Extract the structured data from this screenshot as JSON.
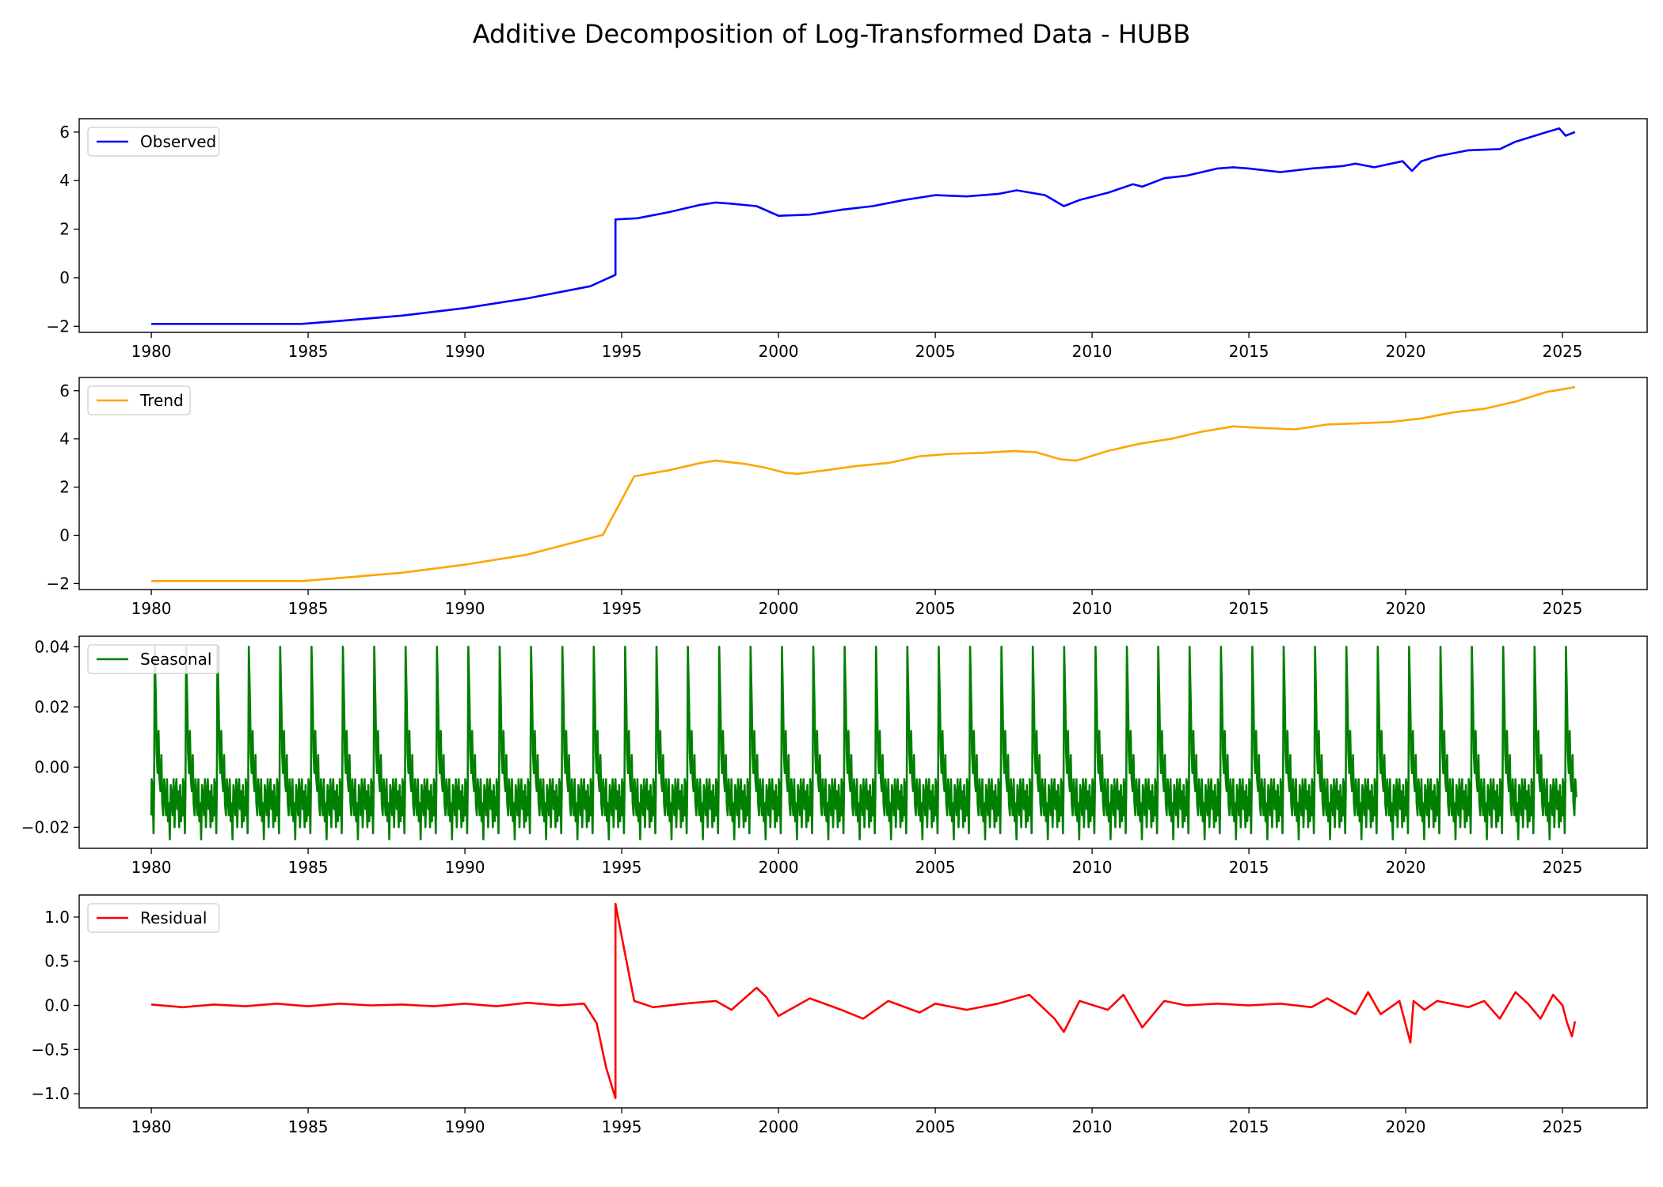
{
  "figure": {
    "title": "Additive Decomposition of Log-Transformed Data - HUBB"
  },
  "chart_data": [
    {
      "type": "line",
      "id": "observed",
      "legend": "Observed",
      "color": "#0000ff",
      "xlim": [
        1977.7,
        2027.7
      ],
      "ylim": [
        -2.25,
        6.55
      ],
      "xticks": [
        1980,
        1985,
        1990,
        1995,
        2000,
        2005,
        2010,
        2015,
        2020,
        2025
      ],
      "yticks": [
        -2,
        0,
        2,
        4,
        6
      ],
      "ytick_labels": [
        "−2",
        "0",
        "2",
        "4",
        "6"
      ],
      "legend_position": "upper-left",
      "x": [
        1980,
        1984.8,
        1986,
        1988,
        1990,
        1992,
        1994,
        1994.8,
        1994.8,
        1995.5,
        1996.5,
        1997.5,
        1998,
        1998.5,
        1999.3,
        2000,
        2001,
        2002,
        2003,
        2004,
        2005,
        2006,
        2007,
        2007.6,
        2008.5,
        2009.1,
        2009.6,
        2010.5,
        2011.3,
        2011.6,
        2012.3,
        2013,
        2014,
        2014.5,
        2015,
        2016,
        2017,
        2018,
        2018.4,
        2019,
        2019.9,
        2020.2,
        2020.5,
        2021,
        2022,
        2023,
        2023.5,
        2024,
        2024.5,
        2024.9,
        2025.1,
        2025.4
      ],
      "y": [
        -1.9,
        -1.9,
        -1.78,
        -1.56,
        -1.25,
        -0.85,
        -0.35,
        0.12,
        2.4,
        2.45,
        2.7,
        3.0,
        3.1,
        3.05,
        2.95,
        2.55,
        2.6,
        2.8,
        2.95,
        3.2,
        3.4,
        3.35,
        3.45,
        3.6,
        3.4,
        2.95,
        3.2,
        3.5,
        3.85,
        3.75,
        4.1,
        4.2,
        4.5,
        4.55,
        4.5,
        4.35,
        4.5,
        4.6,
        4.7,
        4.55,
        4.8,
        4.4,
        4.8,
        5.0,
        5.25,
        5.3,
        5.6,
        5.8,
        6.0,
        6.15,
        5.85,
        6.0
      ]
    },
    {
      "type": "line",
      "id": "trend",
      "legend": "Trend",
      "color": "#ffa500",
      "xlim": [
        1977.7,
        2027.7
      ],
      "ylim": [
        -2.25,
        6.55
      ],
      "xticks": [
        1980,
        1985,
        1990,
        1995,
        2000,
        2005,
        2010,
        2015,
        2020,
        2025
      ],
      "yticks": [
        -2,
        0,
        2,
        4,
        6
      ],
      "ytick_labels": [
        "−2",
        "0",
        "2",
        "4",
        "6"
      ],
      "legend_position": "upper-left",
      "x": [
        1980,
        1984.8,
        1986,
        1988,
        1990,
        1992,
        1994.4,
        1995.4,
        1996.5,
        1997.5,
        1998,
        1999,
        1999.6,
        2000.2,
        2000.6,
        2001.5,
        2002.5,
        2003.5,
        2004.5,
        2005.5,
        2006.5,
        2007.5,
        2008.2,
        2009,
        2009.5,
        2010.5,
        2011.5,
        2012.5,
        2013.5,
        2014.5,
        2015.5,
        2016.5,
        2017.5,
        2018.5,
        2019.5,
        2020.5,
        2021.5,
        2022.5,
        2023.5,
        2024.5,
        2025.4
      ],
      "y": [
        -1.9,
        -1.9,
        -1.77,
        -1.55,
        -1.22,
        -0.8,
        0.02,
        2.45,
        2.7,
        3.0,
        3.1,
        2.95,
        2.8,
        2.6,
        2.55,
        2.7,
        2.88,
        3.0,
        3.28,
        3.38,
        3.42,
        3.5,
        3.45,
        3.15,
        3.1,
        3.5,
        3.8,
        4.0,
        4.3,
        4.52,
        4.45,
        4.4,
        4.6,
        4.65,
        4.7,
        4.85,
        5.1,
        5.25,
        5.55,
        5.95,
        6.15
      ]
    },
    {
      "type": "line",
      "id": "seasonal",
      "legend": "Seasonal",
      "color": "#008000",
      "xlim": [
        1977.7,
        2027.7
      ],
      "ylim": [
        -0.027,
        0.0435
      ],
      "xticks": [
        1980,
        1985,
        1990,
        1995,
        2000,
        2005,
        2010,
        2015,
        2020,
        2025
      ],
      "yticks": [
        -0.02,
        0.0,
        0.02,
        0.04
      ],
      "ytick_labels": [
        "−0.02",
        "0.00",
        "0.02",
        "0.04"
      ],
      "legend_position": "upper-left",
      "period_years": 1,
      "cycle_phase": [
        0.0,
        0.01,
        0.02,
        0.03,
        0.04,
        0.05,
        0.07,
        0.09,
        0.11,
        0.13,
        0.15,
        0.17,
        0.2,
        0.23,
        0.26,
        0.29,
        0.32,
        0.35,
        0.38,
        0.41,
        0.44,
        0.47,
        0.5,
        0.53,
        0.56,
        0.59,
        0.62,
        0.65,
        0.68,
        0.71,
        0.74,
        0.77,
        0.8,
        0.83,
        0.86,
        0.89,
        0.92,
        0.95,
        0.97,
        0.99
      ],
      "cycle_values": [
        -0.016,
        -0.004,
        -0.014,
        -0.005,
        -0.016,
        -0.012,
        -0.022,
        -0.008,
        0.04,
        0.03,
        0.02,
        0.005,
        -0.002,
        0.012,
        -0.004,
        -0.008,
        0.004,
        -0.012,
        -0.016,
        -0.004,
        -0.01,
        -0.016,
        -0.004,
        -0.018,
        -0.012,
        -0.024,
        -0.006,
        -0.01,
        -0.016,
        -0.004,
        -0.02,
        -0.008,
        -0.004,
        -0.014,
        -0.008,
        -0.02,
        -0.006,
        -0.018,
        -0.01,
        -0.016
      ]
    },
    {
      "type": "line",
      "id": "residual",
      "legend": "Residual",
      "color": "#ff0000",
      "xlim": [
        1977.7,
        2027.7
      ],
      "ylim": [
        -1.16,
        1.25
      ],
      "xticks": [
        1980,
        1985,
        1990,
        1995,
        2000,
        2005,
        2010,
        2015,
        2020,
        2025
      ],
      "yticks": [
        -1.0,
        -0.5,
        0.0,
        0.5,
        1.0
      ],
      "ytick_labels": [
        "−1.0",
        "−0.5",
        "0.0",
        "0.5",
        "1.0"
      ],
      "legend_position": "upper-left",
      "x": [
        1980,
        1981,
        1982,
        1983,
        1984,
        1985,
        1986,
        1987,
        1988,
        1989,
        1990,
        1991,
        1992,
        1993,
        1993.8,
        1994.2,
        1994.5,
        1994.8,
        1994.8,
        1995.1,
        1995.4,
        1996,
        1997,
        1998,
        1998.5,
        1999.3,
        1999.6,
        2000,
        2001,
        2002,
        2002.7,
        2003.5,
        2004.5,
        2005,
        2006,
        2007,
        2008,
        2008.8,
        2009.1,
        2009.6,
        2010.5,
        2011,
        2011.6,
        2012.3,
        2013,
        2014,
        2015,
        2016,
        2017,
        2017.5,
        2018.4,
        2018.8,
        2019.2,
        2019.8,
        2020.15,
        2020.25,
        2020.6,
        2021,
        2022,
        2022.5,
        2023,
        2023.5,
        2023.9,
        2024.3,
        2024.7,
        2025.0,
        2025.15,
        2025.3,
        2025.4
      ],
      "y": [
        0.01,
        -0.02,
        0.01,
        -0.01,
        0.02,
        -0.01,
        0.02,
        0.0,
        0.01,
        -0.01,
        0.02,
        -0.01,
        0.03,
        0.0,
        0.02,
        -0.2,
        -0.7,
        -1.05,
        1.15,
        0.6,
        0.05,
        -0.02,
        0.02,
        0.05,
        -0.05,
        0.2,
        0.1,
        -0.12,
        0.08,
        -0.05,
        -0.15,
        0.05,
        -0.08,
        0.02,
        -0.05,
        0.02,
        0.12,
        -0.15,
        -0.3,
        0.05,
        -0.05,
        0.12,
        -0.25,
        0.05,
        0.0,
        0.02,
        0.0,
        0.02,
        -0.02,
        0.08,
        -0.1,
        0.15,
        -0.1,
        0.05,
        -0.42,
        0.05,
        -0.05,
        0.05,
        -0.02,
        0.05,
        -0.15,
        0.15,
        0.02,
        -0.15,
        0.12,
        0.0,
        -0.2,
        -0.35,
        -0.18
      ]
    }
  ]
}
